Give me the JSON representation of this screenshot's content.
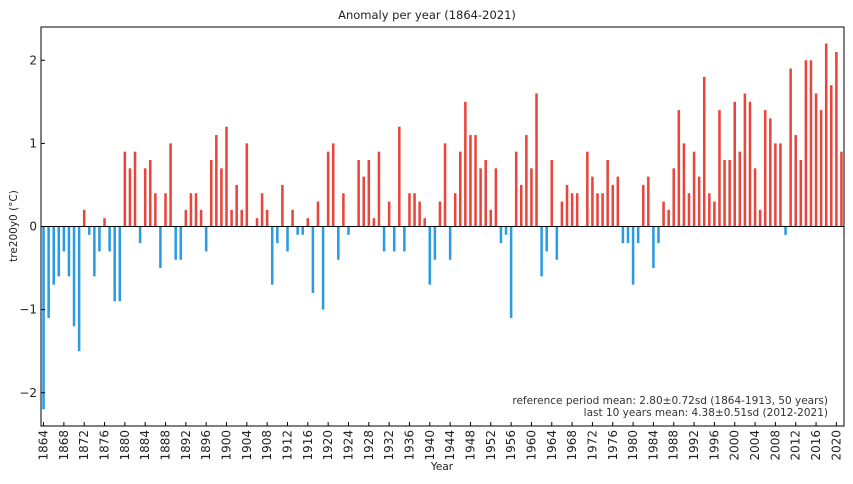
{
  "chart_data": {
    "type": "bar",
    "title": "Anomaly per year (1864-2021)",
    "xlabel": "Year",
    "ylabel": "tre200y0  (°C)",
    "x_start": 1864,
    "x_end": 2021,
    "x_tick_step": 4,
    "ylim": [
      -2.4,
      2.4
    ],
    "yticks": [
      -2,
      -1,
      0,
      1,
      2
    ],
    "ytick_labels": [
      "−2",
      "−1",
      "0",
      "1",
      "2"
    ],
    "values": [
      -2.2,
      -1.1,
      -0.7,
      -0.6,
      -0.3,
      -0.6,
      -1.2,
      -1.5,
      0.2,
      -0.1,
      -0.6,
      -0.3,
      0.1,
      -0.3,
      -0.9,
      -0.9,
      0.9,
      0.7,
      0.9,
      -0.2,
      0.7,
      0.8,
      0.4,
      -0.5,
      0.4,
      1.0,
      -0.4,
      -0.4,
      0.2,
      0.4,
      0.4,
      0.2,
      -0.3,
      0.8,
      1.1,
      0.7,
      1.2,
      0.2,
      0.5,
      0.2,
      1.0,
      0.0,
      0.1,
      0.4,
      0.2,
      -0.7,
      -0.2,
      0.5,
      -0.3,
      0.2,
      -0.1,
      -0.1,
      0.1,
      -0.8,
      0.3,
      -1.0,
      0.9,
      1.0,
      -0.4,
      0.4,
      -0.1,
      0.0,
      0.8,
      0.6,
      0.8,
      0.1,
      0.9,
      -0.3,
      0.3,
      -0.3,
      1.2,
      -0.3,
      0.4,
      0.4,
      0.3,
      0.1,
      -0.7,
      -0.4,
      0.3,
      1.0,
      -0.4,
      0.4,
      0.9,
      1.5,
      1.1,
      1.1,
      0.7,
      0.8,
      0.2,
      0.7,
      -0.2,
      -0.1,
      -1.1,
      0.9,
      0.5,
      1.1,
      0.7,
      1.6,
      -0.6,
      -0.3,
      0.8,
      -0.4,
      0.3,
      0.5,
      0.4,
      0.4,
      0.0,
      0.9,
      0.6,
      0.4,
      0.4,
      0.8,
      0.5,
      0.6,
      -0.2,
      -0.2,
      -0.7,
      -0.2,
      0.5,
      0.6,
      -0.5,
      -0.2,
      0.3,
      0.2,
      0.7,
      1.4,
      1.0,
      0.4,
      0.9,
      0.6,
      1.8,
      0.4,
      0.3,
      1.4,
      0.8,
      0.8,
      1.5,
      0.9,
      1.6,
      1.5,
      0.7,
      0.2,
      1.4,
      1.3,
      1.0,
      1.0,
      -0.1,
      1.9,
      1.1,
      0.8,
      2.0,
      2.0,
      1.6,
      1.4,
      2.2,
      1.7,
      2.1,
      0.9
    ],
    "colors": {
      "positive": "#e8453c",
      "negative": "#2b9be3"
    },
    "annotations": [
      "reference period mean: 2.80±0.72sd (1864-1913, 50 years)",
      "last 10 years mean: 4.38±0.51sd (2012-2021)"
    ],
    "grid": false,
    "zero_line": true
  }
}
